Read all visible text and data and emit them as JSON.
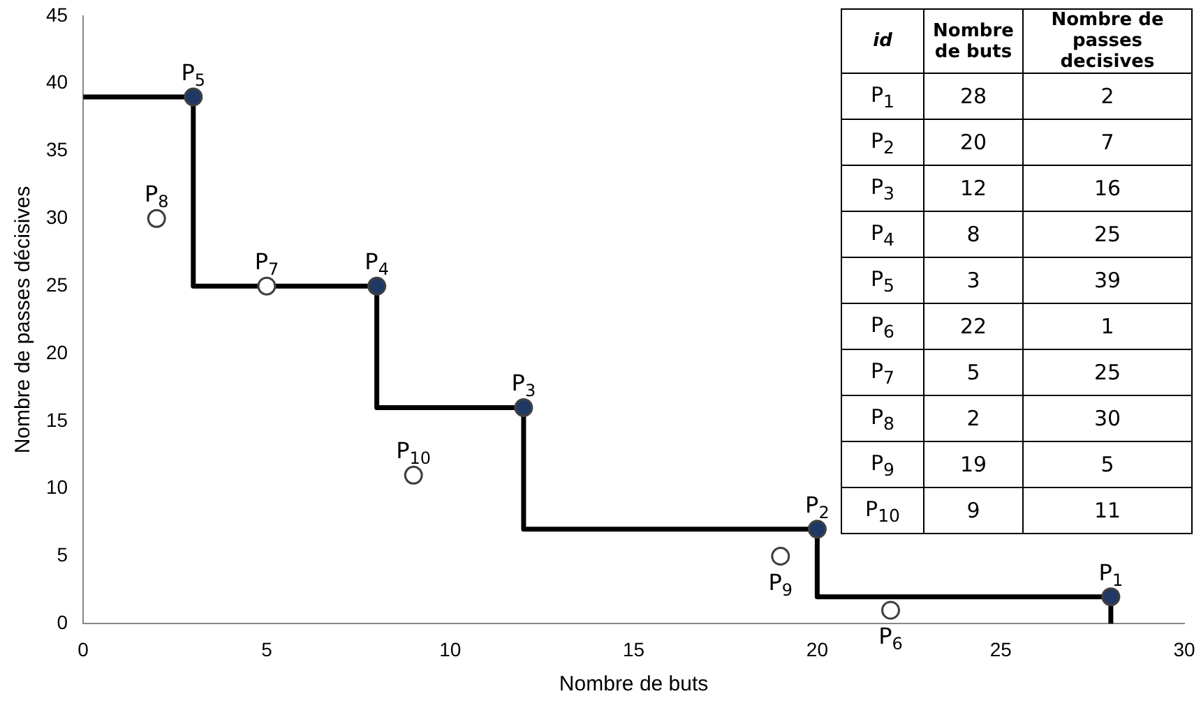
{
  "chart_data": {
    "type": "scatter",
    "xlabel": "Nombre de buts",
    "ylabel": "Nombre de passes décisives",
    "xlim": [
      0,
      30
    ],
    "xticks": [
      0,
      5,
      10,
      15,
      20,
      25,
      30
    ],
    "ylim": [
      0,
      45
    ],
    "yticks": [
      0,
      5,
      10,
      15,
      20,
      25,
      30,
      35,
      40,
      45
    ],
    "grid": false,
    "legend": false,
    "series": [
      {
        "type": "step",
        "x": [
          0,
          3,
          8,
          12,
          20,
          28
        ],
        "values": [
          39,
          25,
          16,
          7,
          2,
          0
        ],
        "color": "#000000",
        "marker": "none"
      },
      {
        "x": [
          28,
          20,
          12,
          8,
          3,
          22,
          5,
          2,
          19,
          9
        ],
        "values": [
          2,
          7,
          16,
          25,
          39,
          1,
          25,
          30,
          5,
          11
        ],
        "colors": [
          "#1f3864",
          "#1f3864",
          "#1f3864",
          "#1f3864",
          "#1f3864",
          "#ffffff",
          "#ffffff",
          "#ffffff",
          "#ffffff",
          "#ffffff"
        ],
        "marker": "circle"
      }
    ],
    "annotations": [
      {
        "text": "P$_{1}$",
        "x": 28,
        "y": 2
      },
      {
        "text": "P$_{2}$",
        "x": 20,
        "y": 7
      },
      {
        "text": "P$_{3}$",
        "x": 12,
        "y": 16
      },
      {
        "text": "P$_{4}$",
        "x": 8,
        "y": 25
      },
      {
        "text": "P$_{5}$",
        "x": 3,
        "y": 39
      },
      {
        "text": "P$_{6}$",
        "x": 22,
        "y": 1
      },
      {
        "text": "P$_{7}$",
        "x": 5,
        "y": 25
      },
      {
        "text": "P$_{8}$",
        "x": 2,
        "y": 30
      },
      {
        "text": "P$_{9}$",
        "x": 19,
        "y": 5
      },
      {
        "text": "P$_{10}$",
        "x": 9,
        "y": 11
      },
      "id",
      "Nombre de buts",
      "Nombre de passes decisives",
      "P$_{1}$",
      "28",
      "2",
      "P$_{2}$",
      "20",
      "7",
      "P$_{3}$",
      "12",
      "16",
      "P$_{4}$",
      "8",
      "25",
      "P$_{5}$",
      "3",
      "39",
      "P$_{6}$",
      "22",
      "1",
      "P$_{7}$",
      "5",
      "25",
      "P$_{8}$",
      "2",
      "30",
      "P$_{9}$",
      "19",
      "5",
      "P$_{10}$",
      "9",
      "11"
    ]
  }
}
